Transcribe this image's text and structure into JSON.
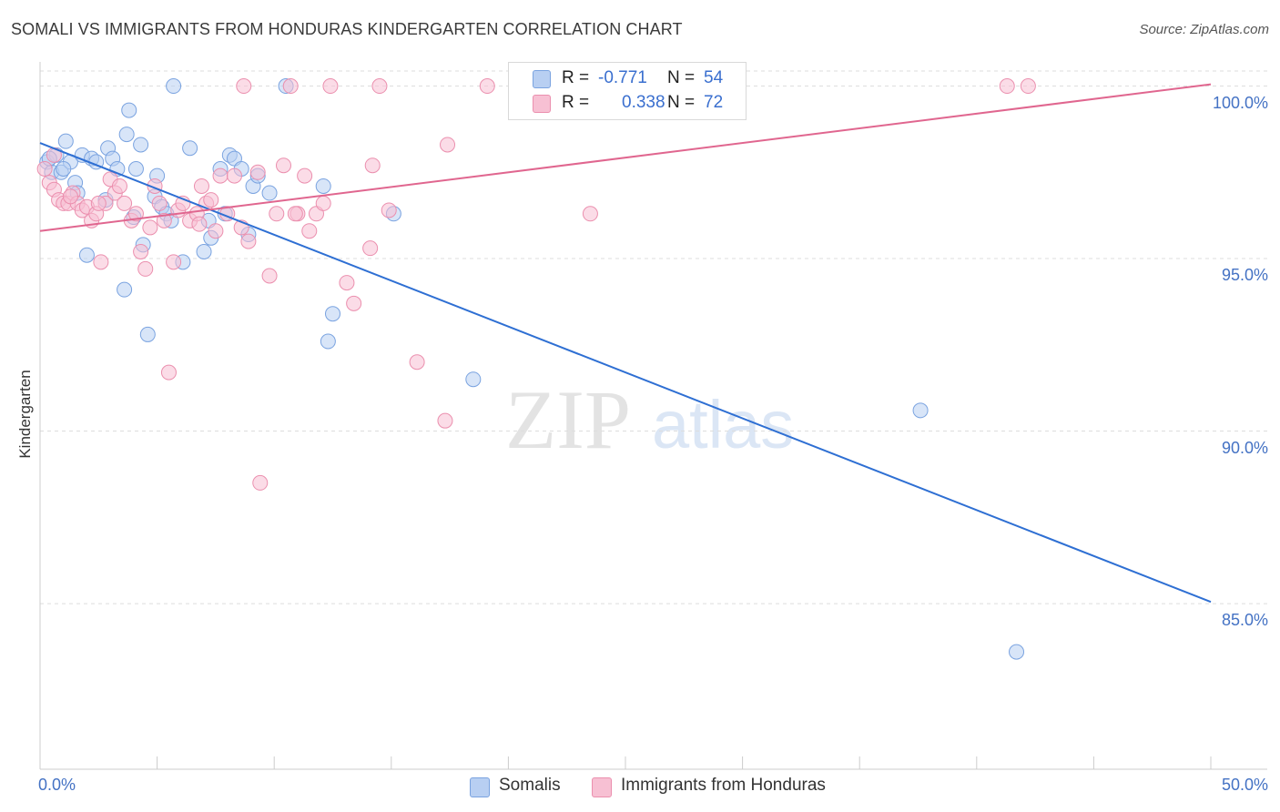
{
  "title": "SOMALI VS IMMIGRANTS FROM HONDURAS KINDERGARTEN CORRELATION CHART",
  "source": "Source: ZipAtlas.com",
  "watermark": {
    "zip": "ZIP",
    "atlas": "atlas"
  },
  "colors": {
    "somali_fill": "#b8cff2",
    "somali_stroke": "#7aa3e0",
    "somali_line": "#2e6fd3",
    "honduras_fill": "#f7c0d3",
    "honduras_stroke": "#eb8fae",
    "honduras_line": "#e0668f",
    "axis_text": "#4472c4",
    "grid": "#dddddd"
  },
  "stats": {
    "r_label": "R =",
    "n_label": "N =",
    "rows": [
      {
        "r": "-0.771",
        "n": "54"
      },
      {
        "r": "0.338",
        "n": "72"
      }
    ]
  },
  "chart_data": {
    "type": "scatter",
    "title": "SOMALI VS IMMIGRANTS FROM HONDURAS KINDERGARTEN CORRELATION CHART",
    "xlabel": "",
    "ylabel": "Kindergarten",
    "xlim": [
      0,
      50
    ],
    "ylim": [
      80.2,
      100.7
    ],
    "x_tick_labels": {
      "min": "0.0%",
      "max": "50.0%"
    },
    "y_ticks": [
      {
        "value": 100,
        "label": "100.0%"
      },
      {
        "value": 95,
        "label": "95.0%"
      },
      {
        "value": 90,
        "label": "90.0%"
      },
      {
        "value": 85,
        "label": "85.0%"
      }
    ],
    "grid": true,
    "legend_position": "bottom",
    "series": [
      {
        "name": "Somalis",
        "trend": {
          "x": [
            0,
            50
          ],
          "y": [
            98.35,
            85.05
          ]
        },
        "points": [
          [
            0.3,
            97.8
          ],
          [
            0.5,
            97.5
          ],
          [
            0.7,
            98.0
          ],
          [
            0.9,
            97.5
          ],
          [
            1.1,
            98.4
          ],
          [
            1.3,
            97.8
          ],
          [
            1.5,
            97.2
          ],
          [
            1.6,
            96.9
          ],
          [
            1.8,
            98.0
          ],
          [
            2.0,
            95.1
          ],
          [
            2.2,
            97.9
          ],
          [
            2.4,
            97.8
          ],
          [
            2.8,
            96.7
          ],
          [
            2.9,
            98.2
          ],
          [
            3.1,
            97.9
          ],
          [
            3.3,
            97.6
          ],
          [
            3.6,
            94.1
          ],
          [
            3.7,
            98.6
          ],
          [
            3.8,
            99.3
          ],
          [
            4.1,
            97.6
          ],
          [
            4.3,
            98.3
          ],
          [
            4.4,
            95.4
          ],
          [
            4.6,
            92.8
          ],
          [
            4.9,
            96.8
          ],
          [
            5.0,
            97.4
          ],
          [
            5.2,
            96.5
          ],
          [
            5.4,
            96.3
          ],
          [
            5.6,
            96.1
          ],
          [
            5.7,
            100.0
          ],
          [
            6.1,
            94.9
          ],
          [
            6.4,
            98.2
          ],
          [
            7.0,
            95.2
          ],
          [
            7.2,
            96.1
          ],
          [
            7.3,
            95.6
          ],
          [
            7.7,
            97.6
          ],
          [
            7.9,
            96.3
          ],
          [
            8.1,
            98.0
          ],
          [
            8.3,
            97.9
          ],
          [
            8.6,
            97.6
          ],
          [
            8.9,
            95.7
          ],
          [
            9.1,
            97.1
          ],
          [
            9.3,
            97.4
          ],
          [
            9.8,
            96.9
          ],
          [
            10.5,
            100.0
          ],
          [
            12.1,
            97.1
          ],
          [
            12.3,
            92.6
          ],
          [
            12.5,
            93.4
          ],
          [
            15.1,
            96.3
          ],
          [
            18.5,
            91.5
          ],
          [
            37.6,
            90.6
          ],
          [
            41.7,
            83.6
          ],
          [
            0.4,
            97.9
          ],
          [
            1.0,
            97.6
          ],
          [
            4.0,
            96.2
          ]
        ]
      },
      {
        "name": "Immigrants from Honduras",
        "trend": {
          "x": [
            0,
            50
          ],
          "y": [
            95.8,
            100.05
          ]
        },
        "points": [
          [
            0.2,
            97.6
          ],
          [
            0.4,
            97.2
          ],
          [
            0.6,
            97.0
          ],
          [
            0.8,
            96.7
          ],
          [
            1.0,
            96.6
          ],
          [
            1.2,
            96.6
          ],
          [
            1.4,
            96.9
          ],
          [
            1.6,
            96.6
          ],
          [
            1.8,
            96.4
          ],
          [
            2.0,
            96.5
          ],
          [
            2.2,
            96.1
          ],
          [
            2.4,
            96.3
          ],
          [
            2.6,
            94.9
          ],
          [
            2.8,
            96.6
          ],
          [
            3.0,
            97.3
          ],
          [
            3.2,
            96.9
          ],
          [
            3.4,
            97.1
          ],
          [
            3.6,
            96.6
          ],
          [
            3.9,
            96.1
          ],
          [
            4.1,
            96.3
          ],
          [
            4.3,
            95.2
          ],
          [
            4.5,
            94.7
          ],
          [
            4.7,
            95.9
          ],
          [
            4.9,
            97.1
          ],
          [
            5.1,
            96.6
          ],
          [
            5.3,
            96.1
          ],
          [
            5.5,
            91.7
          ],
          [
            5.7,
            94.9
          ],
          [
            5.9,
            96.4
          ],
          [
            6.1,
            96.6
          ],
          [
            6.4,
            96.1
          ],
          [
            6.7,
            96.3
          ],
          [
            6.9,
            97.1
          ],
          [
            7.1,
            96.6
          ],
          [
            7.3,
            96.7
          ],
          [
            7.5,
            95.8
          ],
          [
            7.7,
            97.4
          ],
          [
            8.0,
            96.3
          ],
          [
            8.3,
            97.4
          ],
          [
            8.6,
            95.9
          ],
          [
            8.9,
            95.5
          ],
          [
            9.3,
            97.5
          ],
          [
            9.4,
            88.5
          ],
          [
            9.8,
            94.5
          ],
          [
            10.1,
            96.3
          ],
          [
            10.4,
            97.7
          ],
          [
            10.7,
            100.0
          ],
          [
            11.0,
            96.3
          ],
          [
            11.3,
            97.4
          ],
          [
            11.5,
            95.8
          ],
          [
            11.8,
            96.3
          ],
          [
            12.1,
            96.6
          ],
          [
            12.4,
            100.0
          ],
          [
            13.1,
            94.3
          ],
          [
            13.4,
            93.7
          ],
          [
            14.1,
            95.3
          ],
          [
            14.5,
            100.0
          ],
          [
            14.9,
            96.4
          ],
          [
            16.1,
            92.0
          ],
          [
            17.3,
            90.3
          ],
          [
            17.4,
            98.3
          ],
          [
            19.1,
            100.0
          ],
          [
            23.5,
            96.3
          ],
          [
            41.3,
            100.0
          ],
          [
            42.2,
            100.0
          ],
          [
            8.7,
            100.0
          ],
          [
            0.6,
            98.0
          ],
          [
            1.3,
            96.8
          ],
          [
            2.5,
            96.6
          ],
          [
            14.2,
            97.7
          ],
          [
            6.8,
            96.0
          ],
          [
            10.9,
            96.3
          ]
        ]
      }
    ]
  }
}
